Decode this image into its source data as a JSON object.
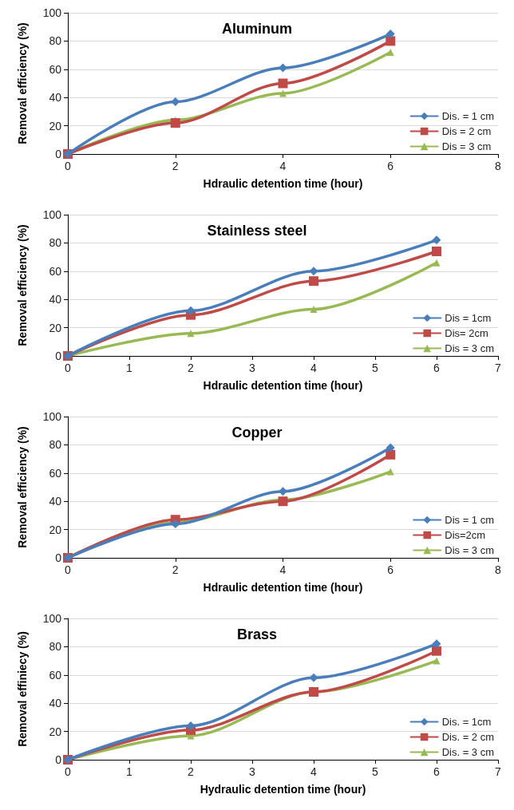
{
  "chart_data": [
    {
      "type": "line",
      "title": "Aluminum",
      "xlabel": "Hdraulic detention time (hour)",
      "ylabel": "Removal efficiency (%)",
      "x": [
        0,
        2,
        4,
        6
      ],
      "xlim": [
        0,
        8
      ],
      "xticks": [
        0,
        2,
        4,
        6,
        8
      ],
      "ylim": [
        0,
        100
      ],
      "yticks": [
        0,
        20,
        40,
        60,
        80,
        100
      ],
      "grid": "y",
      "legend": "bottom right",
      "series": [
        {
          "name": "Dis. = 1 cm",
          "color": "#4a7ebb",
          "marker": "diamond",
          "values": [
            0,
            37,
            61,
            85
          ]
        },
        {
          "name": "Dis = 2 cm",
          "color": "#be4b48",
          "marker": "square",
          "values": [
            0,
            22,
            50,
            80
          ]
        },
        {
          "name": "Dis = 3 cm",
          "color": "#98b954",
          "marker": "triangle",
          "values": [
            0,
            24,
            43,
            72
          ]
        }
      ]
    },
    {
      "type": "line",
      "title": "Stainless steel",
      "xlabel": "Hdraulic detention time (hour)",
      "ylabel": "Removal efficiency (%)",
      "x": [
        0,
        2,
        4,
        6
      ],
      "xlim": [
        0,
        7
      ],
      "xticks": [
        0,
        1,
        2,
        3,
        4,
        5,
        6,
        7
      ],
      "ylim": [
        0,
        100
      ],
      "yticks": [
        0,
        20,
        40,
        60,
        80,
        100
      ],
      "grid": "y",
      "legend": "bottom right",
      "series": [
        {
          "name": "Dis = 1cm",
          "color": "#4a7ebb",
          "marker": "diamond",
          "values": [
            0,
            32,
            60,
            82
          ]
        },
        {
          "name": "Dis= 2cm",
          "color": "#be4b48",
          "marker": "square",
          "values": [
            0,
            29,
            53,
            74
          ]
        },
        {
          "name": "Dis = 3 cm",
          "color": "#98b954",
          "marker": "triangle",
          "values": [
            0,
            16,
            33,
            66
          ]
        }
      ]
    },
    {
      "type": "line",
      "title": "Copper",
      "xlabel": "Hdraulic detention time (hour)",
      "ylabel": "Removal efficiency (%)",
      "x": [
        0,
        2,
        4,
        6
      ],
      "xlim": [
        0,
        8
      ],
      "xticks": [
        0,
        2,
        4,
        6,
        8
      ],
      "ylim": [
        0,
        100
      ],
      "yticks": [
        0,
        20,
        40,
        60,
        80,
        100
      ],
      "grid": "y",
      "legend": "bottom right",
      "series": [
        {
          "name": "Dis = 1 cm",
          "color": "#4a7ebb",
          "marker": "diamond",
          "values": [
            0,
            24,
            47,
            78
          ]
        },
        {
          "name": "Dis=2cm",
          "color": "#be4b48",
          "marker": "square",
          "values": [
            0,
            27,
            40,
            73
          ]
        },
        {
          "name": "Dis = 3 cm",
          "color": "#98b954",
          "marker": "triangle",
          "values": [
            0,
            25,
            41,
            61
          ]
        }
      ]
    },
    {
      "type": "line",
      "title": "Brass",
      "xlabel": "Hydraulic detention time (hour)",
      "ylabel": "Removal effiniecy (%)",
      "x": [
        0,
        2,
        4,
        6
      ],
      "xlim": [
        0,
        7
      ],
      "xticks": [
        0,
        1,
        2,
        3,
        4,
        5,
        6,
        7
      ],
      "ylim": [
        0,
        100
      ],
      "yticks": [
        0,
        20,
        40,
        60,
        80,
        100
      ],
      "grid": "y",
      "legend": "bottom right",
      "series": [
        {
          "name": "Dis. = 1cm",
          "color": "#4a7ebb",
          "marker": "diamond",
          "values": [
            0,
            24,
            58,
            82
          ]
        },
        {
          "name": "Dis. = 2 cm",
          "color": "#be4b48",
          "marker": "square",
          "values": [
            0,
            21,
            48,
            77
          ]
        },
        {
          "name": "Dis. = 3 cm",
          "color": "#98b954",
          "marker": "triangle",
          "values": [
            0,
            17,
            48,
            70
          ]
        }
      ]
    }
  ]
}
